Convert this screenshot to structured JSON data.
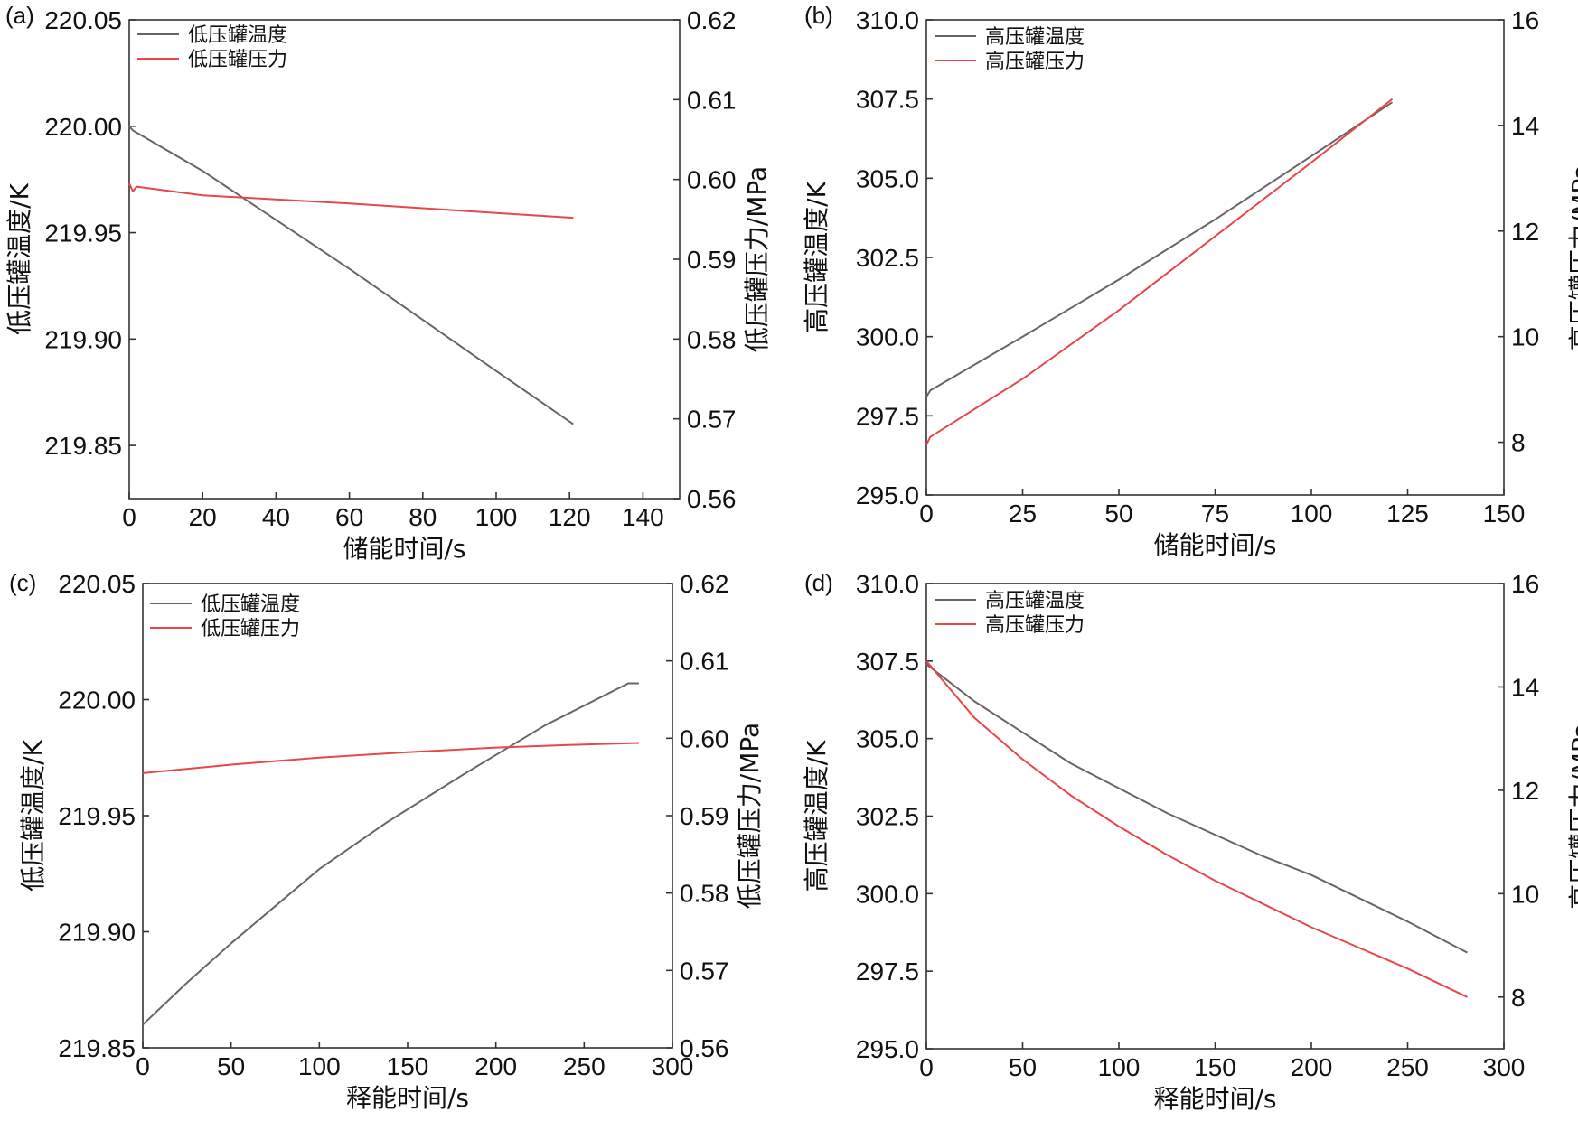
{
  "chart_data": [
    {
      "type": "line",
      "panel_label": "(a)",
      "xlabel": "储能时间/s",
      "ylabel_left": "低压罐温度/K",
      "ylabel_right": "低压罐压力/MPa",
      "xlim": [
        0,
        150
      ],
      "xticks": [
        0,
        20,
        40,
        60,
        80,
        100,
        120,
        140
      ],
      "ylim_left": [
        219.825,
        220.05
      ],
      "yticks_left": [
        219.85,
        219.9,
        219.95,
        220.0,
        220.05
      ],
      "yticks_left_labels": [
        "219.85",
        "219.90",
        "219.95",
        "220.00",
        "220.05"
      ],
      "ylim_right": [
        0.56,
        0.62
      ],
      "yticks_right": [
        0.56,
        0.57,
        0.58,
        0.59,
        0.6,
        0.61,
        0.62
      ],
      "yticks_right_labels": [
        "0.56",
        "0.57",
        "0.58",
        "0.59",
        "0.60",
        "0.61",
        "0.62"
      ],
      "series": [
        {
          "name": "低压罐温度",
          "axis": "left",
          "color": "#6b6464",
          "x": [
            0,
            1,
            20,
            40,
            60,
            80,
            100,
            121
          ],
          "y": [
            220.0,
            219.998,
            219.979,
            219.956,
            219.933,
            219.909,
            219.885,
            219.86
          ]
        },
        {
          "name": "低压罐压力",
          "axis": "right",
          "color": "#e8474a",
          "x": [
            0,
            1,
            2,
            20,
            40,
            60,
            80,
            100,
            121
          ],
          "y": [
            0.5995,
            0.5985,
            0.5991,
            0.598,
            0.5975,
            0.597,
            0.5964,
            0.5958,
            0.5952
          ]
        }
      ]
    },
    {
      "type": "line",
      "panel_label": "(b)",
      "xlabel": "储能时间/s",
      "ylabel_left": "高压罐温度/K",
      "ylabel_right": "高压罐压力/MPa",
      "xlim": [
        0,
        150
      ],
      "xticks": [
        0,
        25,
        50,
        75,
        100,
        125,
        150
      ],
      "ylim_left": [
        295.0,
        310.0
      ],
      "yticks_left": [
        295.0,
        297.5,
        300.0,
        302.5,
        305.0,
        307.5,
        310.0
      ],
      "yticks_left_labels": [
        "295.0",
        "297.5",
        "300.0",
        "302.5",
        "305.0",
        "307.5",
        "310.0"
      ],
      "ylim_right": [
        7,
        16
      ],
      "yticks_right": [
        8,
        10,
        12,
        14,
        16
      ],
      "yticks_right_labels": [
        "8",
        "10",
        "12",
        "14",
        "16"
      ],
      "series": [
        {
          "name": "高压罐温度",
          "axis": "left",
          "color": "#6b6464",
          "x": [
            0,
            1,
            25,
            50,
            75,
            100,
            121
          ],
          "y": [
            298.1,
            298.3,
            300.0,
            301.8,
            303.7,
            305.7,
            307.4
          ]
        },
        {
          "name": "高压罐压力",
          "axis": "right",
          "color": "#e8474a",
          "x": [
            0,
            1,
            25,
            50,
            75,
            100,
            121
          ],
          "y": [
            7.95,
            8.1,
            9.2,
            10.5,
            11.9,
            13.3,
            14.5
          ]
        }
      ]
    },
    {
      "type": "line",
      "panel_label": "(c)",
      "xlabel": "释能时间/s",
      "ylabel_left": "低压罐温度/K",
      "ylabel_right": "低压罐压力/MPa",
      "xlim": [
        0,
        300
      ],
      "xticks": [
        0,
        50,
        100,
        150,
        200,
        250,
        300
      ],
      "ylim_left": [
        219.85,
        220.05
      ],
      "yticks_left": [
        219.85,
        219.9,
        219.95,
        220.0,
        220.05
      ],
      "yticks_left_labels": [
        "219.85",
        "219.90",
        "219.95",
        "220.00",
        "220.05"
      ],
      "ylim_right": [
        0.56,
        0.62
      ],
      "yticks_right": [
        0.56,
        0.57,
        0.58,
        0.59,
        0.6,
        0.61,
        0.62
      ],
      "yticks_right_labels": [
        "0.56",
        "0.57",
        "0.58",
        "0.59",
        "0.60",
        "0.61",
        "0.62"
      ],
      "series": [
        {
          "name": "低压罐温度",
          "axis": "left",
          "color": "#6b6464",
          "x": [
            0,
            25,
            50,
            75,
            100,
            138,
            180,
            228,
            275,
            281
          ],
          "y": [
            219.86,
            219.878,
            219.895,
            219.911,
            219.927,
            219.947,
            219.967,
            219.989,
            220.007,
            220.007
          ]
        },
        {
          "name": "低压罐压力",
          "axis": "right",
          "color": "#e8474a",
          "x": [
            0,
            50,
            100,
            150,
            200,
            250,
            281
          ],
          "y": [
            0.5955,
            0.5966,
            0.5975,
            0.5982,
            0.5988,
            0.5992,
            0.5994
          ]
        }
      ]
    },
    {
      "type": "line",
      "panel_label": "(d)",
      "xlabel": "释能时间/s",
      "ylabel_left": "高压罐温度/K",
      "ylabel_right": "高压罐压力/MPa",
      "xlim": [
        0,
        300
      ],
      "xticks": [
        0,
        50,
        100,
        150,
        200,
        250,
        300
      ],
      "ylim_left": [
        295.0,
        310.0
      ],
      "yticks_left": [
        295.0,
        297.5,
        300.0,
        302.5,
        305.0,
        307.5,
        310.0
      ],
      "yticks_left_labels": [
        "295.0",
        "297.5",
        "300.0",
        "302.5",
        "305.0",
        "307.5",
        "310.0"
      ],
      "ylim_right": [
        7,
        16
      ],
      "yticks_right": [
        8,
        10,
        12,
        14,
        16
      ],
      "yticks_right_labels": [
        "8",
        "10",
        "12",
        "14",
        "16"
      ],
      "series": [
        {
          "name": "高压罐温度",
          "axis": "left",
          "color": "#6b6464",
          "x": [
            0,
            25,
            50,
            75,
            100,
            125,
            150,
            175,
            200,
            250,
            281
          ],
          "y": [
            307.4,
            306.2,
            305.2,
            304.2,
            303.4,
            302.6,
            301.9,
            301.2,
            300.6,
            299.1,
            298.1
          ]
        },
        {
          "name": "高压罐压力",
          "axis": "right",
          "color": "#e8474a",
          "x": [
            0,
            25,
            50,
            75,
            100,
            125,
            150,
            175,
            200,
            250,
            281
          ],
          "y": [
            14.5,
            13.4,
            12.6,
            11.9,
            11.3,
            10.75,
            10.25,
            9.8,
            9.35,
            8.55,
            8.0
          ]
        }
      ]
    }
  ]
}
